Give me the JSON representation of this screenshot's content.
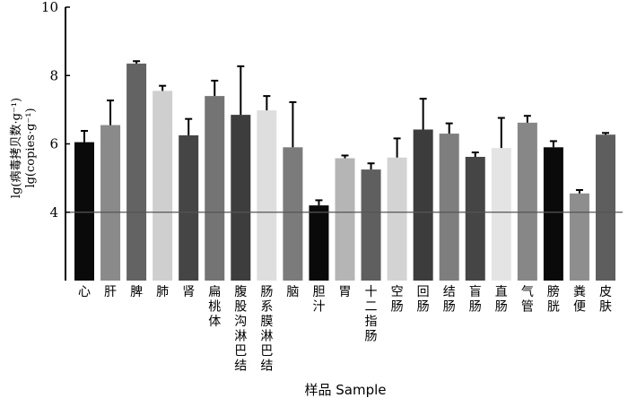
{
  "chart_data": {
    "type": "bar",
    "title": "",
    "xlabel": "样品 Sample",
    "ylabel_lines": [
      "lg(病毒拷贝数·g⁻¹)",
      "lg(copies·g⁻¹)"
    ],
    "ylim": [
      2,
      10
    ],
    "yticks": [
      4,
      6,
      8,
      10
    ],
    "reference_line": 4,
    "grid": false,
    "categories": [
      "心",
      "肝",
      "脾",
      "肺",
      "肾",
      "扁桃体",
      "腹股沟淋巴结",
      "肠系膜淋巴结",
      "脑",
      "胆汁",
      "胃",
      "十二指肠",
      "空肠",
      "回肠",
      "结肠",
      "盲肠",
      "直肠",
      "气管",
      "膀胱",
      "粪便",
      "皮肤"
    ],
    "values": [
      6.05,
      6.55,
      8.35,
      7.55,
      6.25,
      7.4,
      6.85,
      6.98,
      5.9,
      4.2,
      5.58,
      5.25,
      5.6,
      6.42,
      6.3,
      5.62,
      5.88,
      6.62,
      5.9,
      4.55,
      6.27
    ],
    "errors": [
      0.33,
      0.72,
      0.07,
      0.15,
      0.48,
      0.45,
      1.42,
      0.42,
      1.32,
      0.15,
      0.08,
      0.18,
      0.56,
      0.9,
      0.3,
      0.13,
      0.88,
      0.2,
      0.18,
      0.1,
      0.05
    ],
    "colors": [
      "#0a0a0a",
      "#8a8a8a",
      "#636363",
      "#cfcfcf",
      "#454545",
      "#747474",
      "#3d3d3d",
      "#dedede",
      "#7b7b7b",
      "#0a0a0a",
      "#b5b5b5",
      "#5f5f5f",
      "#d3d3d3",
      "#3c3c3c",
      "#7e7e7e",
      "#454545",
      "#e4e4e4",
      "#878787",
      "#0a0a0a",
      "#8e8e8e",
      "#5e5e5e"
    ]
  }
}
